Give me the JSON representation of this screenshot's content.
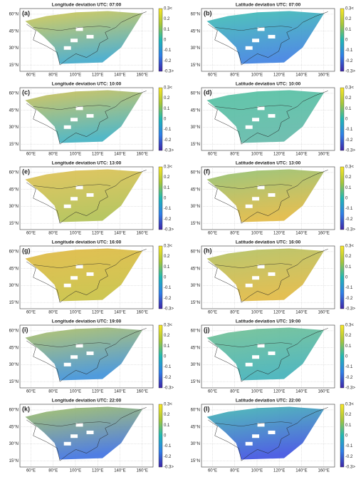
{
  "panels": [
    {
      "label": "(a)",
      "title": "Longitude deviation UTC: 07:00"
    },
    {
      "label": "(b)",
      "title": "Latitude deviation UTC: 07:00"
    },
    {
      "label": "(c)",
      "title": "Longitude deviation UTC: 10:00"
    },
    {
      "label": "(d)",
      "title": "Latitude deviation UTC: 10:00"
    },
    {
      "label": "(e)",
      "title": "Longitude deviation UTC: 13:00"
    },
    {
      "label": "(f)",
      "title": "Latitude deviation UTC: 13:00"
    },
    {
      "label": "(g)",
      "title": "Longitude deviation UTC: 16:00"
    },
    {
      "label": "(h)",
      "title": "Latitude deviation UTC: 16:00"
    },
    {
      "label": "(i)",
      "title": "Longitude deviation UTC: 19:00"
    },
    {
      "label": "(j)",
      "title": "Latitude deviation UTC: 19:00"
    },
    {
      "label": "(k)",
      "title": "Longitude deviation UTC: 22:00"
    },
    {
      "label": "(l)",
      "title": "Latitude deviation UTC: 22:00"
    }
  ],
  "axes": {
    "x_ticks": [
      "60°E",
      "80°E",
      "100°E",
      "120°E",
      "140°E",
      "160°E"
    ],
    "y_ticks": [
      "60°N",
      "45°N",
      "30°N",
      "15°N"
    ]
  },
  "colorbar": {
    "ticks": [
      "0.3<",
      "0.2",
      "0.1",
      "0",
      "-0.1",
      "-0.2",
      "-0.3>"
    ]
  }
}
